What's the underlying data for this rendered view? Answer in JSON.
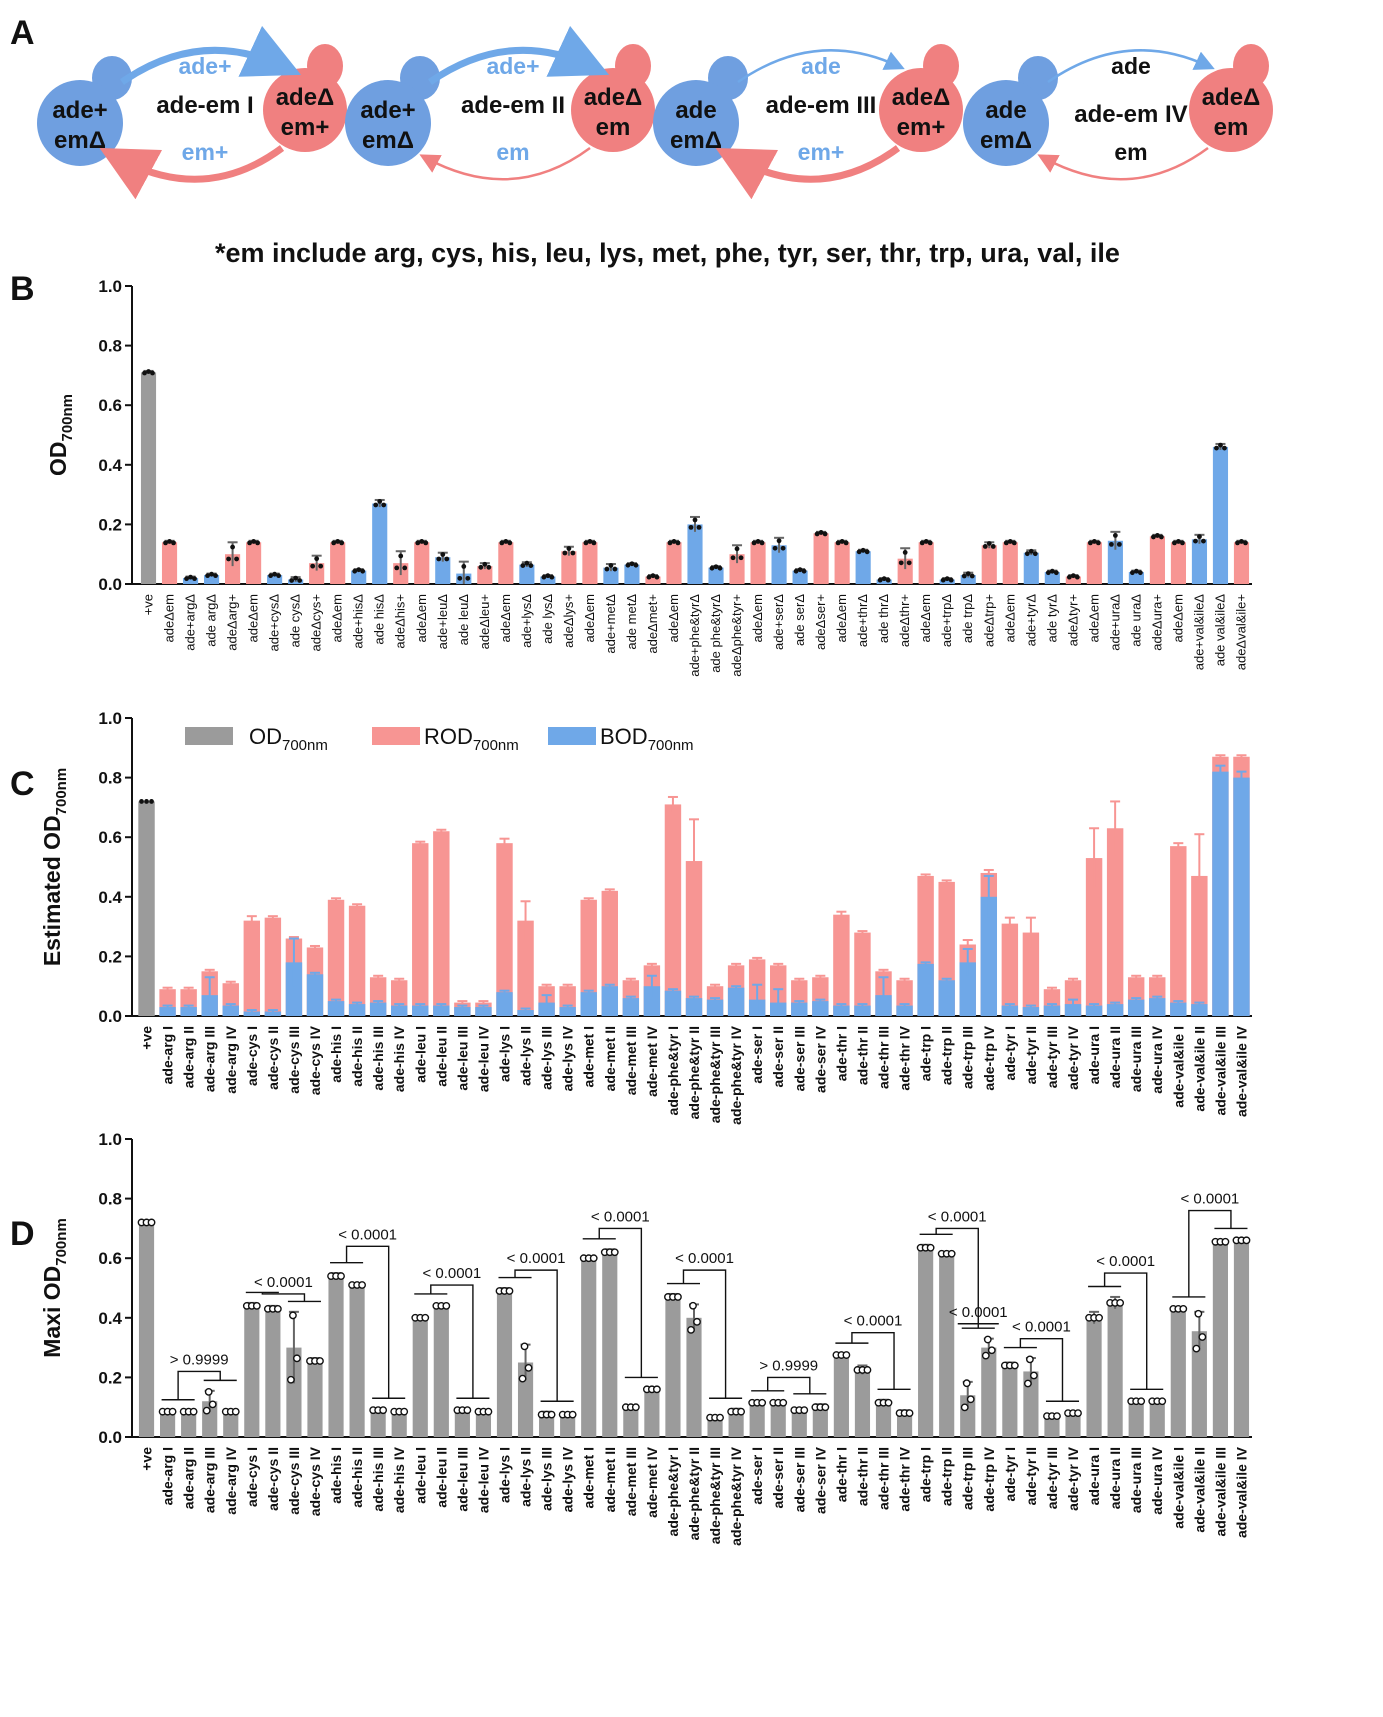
{
  "panels": {
    "A": "A",
    "B": "B",
    "C": "C",
    "D": "D"
  },
  "diagrams": [
    {
      "center": "ade-em I",
      "top": "ade+",
      "bottom": "em+",
      "left": [
        "ade+",
        "emΔ"
      ],
      "right": [
        "adeΔ",
        "em+"
      ],
      "top_thick": true,
      "bottom_thick": true
    },
    {
      "center": "ade-em II",
      "top": "ade+",
      "bottom": "em",
      "left": [
        "ade+",
        "emΔ"
      ],
      "right": [
        "adeΔ",
        "em"
      ],
      "top_thick": true,
      "bottom_thick": false
    },
    {
      "center": "ade-em III",
      "top": "ade",
      "bottom": "em+",
      "left": [
        "ade",
        "emΔ"
      ],
      "right": [
        "adeΔ",
        "em+"
      ],
      "top_thick": false,
      "bottom_thick": true
    },
    {
      "center": "ade-em IV",
      "top": "ade",
      "bottom": "em",
      "left": [
        "ade",
        "emΔ"
      ],
      "right": [
        "adeΔ",
        "em"
      ],
      "top_thick": false,
      "bottom_thick": false
    }
  ],
  "em_note": "*em include arg, cys, his, leu, lys, met, phe, tyr, ser, thr, trp, ura, val, ile",
  "colors": {
    "gray": "#9b9b9b",
    "red": "#f79593",
    "blue": "#6fa8e8",
    "blue_cell": "#6f9fe0",
    "red_cell": "#f08080",
    "text_blue": "#6fa8e8",
    "text_red": "#f08080"
  },
  "chart_data": [
    {
      "type": "bar",
      "panel": "B",
      "ylabel": "OD700nm",
      "ylim": [
        0,
        1.0
      ],
      "yticks": [
        "0.0",
        "0.2",
        "0.4",
        "0.6",
        "0.8",
        "1.0"
      ],
      "categories": [
        "+ve",
        "adeΔem",
        "ade+argΔ",
        "ade argΔ",
        "adeΔarg+",
        "adeΔem",
        "ade+cysΔ",
        "ade cysΔ",
        "adeΔcys+",
        "adeΔem",
        "ade+hisΔ",
        "ade hisΔ",
        "adeΔhis+",
        "adeΔem",
        "ade+leuΔ",
        "ade leuΔ",
        "adeΔleu+",
        "adeΔem",
        "ade+lysΔ",
        "ade lysΔ",
        "adeΔlys+",
        "adeΔem",
        "ade+metΔ",
        "ade metΔ",
        "adeΔmet+",
        "adeΔem",
        "ade+phe&tyrΔ",
        "ade phe&tyrΔ",
        "adeΔphe&tyr+",
        "adeΔem",
        "ade+serΔ",
        "ade serΔ",
        "adeΔser+",
        "adeΔem",
        "ade+thrΔ",
        "ade thrΔ",
        "adeΔthr+",
        "adeΔem",
        "ade+trpΔ",
        "ade trpΔ",
        "adeΔtrp+",
        "adeΔem",
        "ade+tyrΔ",
        "ade tyrΔ",
        "adeΔtyr+",
        "adeΔem",
        "ade+uraΔ",
        "ade uraΔ",
        "adeΔura+",
        "adeΔem",
        "ade+val&ileΔ",
        "ade val&ileΔ",
        "adeΔval&ile+"
      ],
      "values": [
        0.71,
        0.14,
        0.02,
        0.03,
        0.1,
        0.14,
        0.03,
        0.015,
        0.07,
        0.14,
        0.045,
        0.27,
        0.07,
        0.14,
        0.09,
        0.035,
        0.06,
        0.14,
        0.065,
        0.025,
        0.11,
        0.14,
        0.055,
        0.065,
        0.025,
        0.14,
        0.2,
        0.055,
        0.1,
        0.14,
        0.13,
        0.045,
        0.17,
        0.14,
        0.11,
        0.015,
        0.085,
        0.14,
        0.015,
        0.03,
        0.13,
        0.14,
        0.105,
        0.04,
        0.025,
        0.14,
        0.145,
        0.04,
        0.16,
        0.14,
        0.15,
        0.46,
        0.14
      ],
      "errors": [
        0.005,
        0.005,
        0.005,
        0.005,
        0.04,
        0.005,
        0.005,
        0.008,
        0.025,
        0.005,
        0.005,
        0.012,
        0.04,
        0.005,
        0.015,
        0.04,
        0.01,
        0.005,
        0.008,
        0.005,
        0.015,
        0.005,
        0.012,
        0.005,
        0.005,
        0.005,
        0.025,
        0.005,
        0.03,
        0.005,
        0.025,
        0.005,
        0.005,
        0.005,
        0.005,
        0.005,
        0.035,
        0.005,
        0.005,
        0.008,
        0.01,
        0.005,
        0.008,
        0.005,
        0.005,
        0.005,
        0.03,
        0.005,
        0.005,
        0.005,
        0.015,
        0.01,
        0.005
      ],
      "color_codes": [
        "g",
        "r",
        "b",
        "b",
        "r",
        "r",
        "b",
        "b",
        "r",
        "r",
        "b",
        "b",
        "r",
        "r",
        "b",
        "b",
        "r",
        "r",
        "b",
        "b",
        "r",
        "r",
        "b",
        "b",
        "r",
        "r",
        "b",
        "b",
        "r",
        "r",
        "b",
        "b",
        "r",
        "r",
        "b",
        "b",
        "r",
        "r",
        "b",
        "b",
        "r",
        "r",
        "b",
        "b",
        "r",
        "r",
        "b",
        "b",
        "r",
        "r",
        "b",
        "b",
        "r"
      ]
    },
    {
      "type": "bar",
      "panel": "C",
      "stacked": true,
      "ylabel": "Estimated OD700nm",
      "ylim": [
        0,
        1.0
      ],
      "yticks": [
        "0.0",
        "0.2",
        "0.4",
        "0.6",
        "0.8",
        "1.0"
      ],
      "legend": {
        "position": "top",
        "items": [
          {
            "label": "OD",
            "sub": "700nm",
            "color": "gray"
          },
          {
            "label": "ROD",
            "sub": "700nm",
            "color": "red"
          },
          {
            "label": "BOD",
            "sub": "700nm",
            "color": "blue"
          }
        ]
      },
      "categories": [
        "+ve",
        "ade-arg I",
        "ade-arg II",
        "ade-arg III",
        "ade-arg IV",
        "ade-cys I",
        "ade-cys II",
        "ade-cys III",
        "ade-cys IV",
        "ade-his I",
        "ade-his II",
        "ade-his III",
        "ade-his IV",
        "ade-leu I",
        "ade-leu II",
        "ade-leu III",
        "ade-leu IV",
        "ade-lys I",
        "ade-lys II",
        "ade-lys III",
        "ade-lys IV",
        "ade-met I",
        "ade-met II",
        "ade-met III",
        "ade-met IV",
        "ade-phe&tyr I",
        "ade-phe&tyr II",
        "ade-phe&tyr III",
        "ade-phe&tyr IV",
        "ade-ser I",
        "ade-ser II",
        "ade-ser III",
        "ade-ser IV",
        "ade-thr I",
        "ade-thr II",
        "ade-thr III",
        "ade-thr IV",
        "ade-trp I",
        "ade-trp II",
        "ade-trp III",
        "ade-trp IV",
        "ade-tyr I",
        "ade-tyr II",
        "ade-tyr III",
        "ade-tyr IV",
        "ade-ura I",
        "ade-ura II",
        "ade-ura III",
        "ade-ura IV",
        "ade-val&ile I",
        "ade-val&ile II",
        "ade-val&ile III",
        "ade-val&ile IV"
      ],
      "totals": [
        0.72,
        0.09,
        0.09,
        0.15,
        0.11,
        0.32,
        0.33,
        0.26,
        0.23,
        0.39,
        0.37,
        0.13,
        0.12,
        0.58,
        0.62,
        0.045,
        0.045,
        0.58,
        0.32,
        0.1,
        0.1,
        0.39,
        0.42,
        0.12,
        0.17,
        0.71,
        0.52,
        0.1,
        0.17,
        0.19,
        0.17,
        0.12,
        0.13,
        0.34,
        0.28,
        0.15,
        0.12,
        0.47,
        0.45,
        0.24,
        0.48,
        0.31,
        0.28,
        0.09,
        0.12,
        0.53,
        0.63,
        0.13,
        0.13,
        0.57,
        0.47,
        0.87,
        0.87
      ],
      "total_errors": [
        0.005,
        0.005,
        0.005,
        0.005,
        0.005,
        0.015,
        0.005,
        0.005,
        0.005,
        0.005,
        0.005,
        0.005,
        0.005,
        0.005,
        0.005,
        0.005,
        0.005,
        0.015,
        0.065,
        0.005,
        0.005,
        0.005,
        0.005,
        0.005,
        0.005,
        0.025,
        0.14,
        0.005,
        0.005,
        0.005,
        0.005,
        0.005,
        0.005,
        0.01,
        0.005,
        0.005,
        0.005,
        0.005,
        0.005,
        0.015,
        0.01,
        0.02,
        0.05,
        0.005,
        0.005,
        0.1,
        0.09,
        0.005,
        0.005,
        0.01,
        0.14,
        0.005,
        0.005
      ],
      "blue": [
        0.0,
        0.03,
        0.03,
        0.07,
        0.035,
        0.015,
        0.015,
        0.18,
        0.14,
        0.05,
        0.04,
        0.045,
        0.035,
        0.035,
        0.035,
        0.03,
        0.03,
        0.08,
        0.02,
        0.045,
        0.03,
        0.08,
        0.1,
        0.06,
        0.1,
        0.085,
        0.06,
        0.055,
        0.095,
        0.055,
        0.045,
        0.045,
        0.05,
        0.035,
        0.035,
        0.07,
        0.035,
        0.175,
        0.12,
        0.18,
        0.4,
        0.035,
        0.03,
        0.035,
        0.04,
        0.035,
        0.04,
        0.055,
        0.06,
        0.045,
        0.04,
        0.82,
        0.8
      ],
      "blue_errors": [
        0,
        0.005,
        0.005,
        0.06,
        0.005,
        0.005,
        0.005,
        0.08,
        0.005,
        0.005,
        0.005,
        0.005,
        0.005,
        0.005,
        0.005,
        0.005,
        0.005,
        0.005,
        0.005,
        0.025,
        0.005,
        0.005,
        0.005,
        0.005,
        0.035,
        0.005,
        0.005,
        0.005,
        0.005,
        0.05,
        0.045,
        0.005,
        0.005,
        0.005,
        0.005,
        0.06,
        0.005,
        0.005,
        0.005,
        0.045,
        0.07,
        0.005,
        0.005,
        0.005,
        0.015,
        0.005,
        0.005,
        0.005,
        0.005,
        0.005,
        0.005,
        0.02,
        0.02
      ]
    },
    {
      "type": "bar",
      "panel": "D",
      "ylabel": "Maxi OD700nm",
      "ylim": [
        0,
        1.0
      ],
      "yticks": [
        "0.0",
        "0.2",
        "0.4",
        "0.6",
        "0.8",
        "1.0"
      ],
      "categories": [
        "+ve",
        "ade-arg I",
        "ade-arg II",
        "ade-arg III",
        "ade-arg IV",
        "ade-cys I",
        "ade-cys II",
        "ade-cys III",
        "ade-cys IV",
        "ade-his I",
        "ade-his II",
        "ade-his III",
        "ade-his IV",
        "ade-leu I",
        "ade-leu II",
        "ade-leu III",
        "ade-leu IV",
        "ade-lys I",
        "ade-lys II",
        "ade-lys III",
        "ade-lys IV",
        "ade-met I",
        "ade-met II",
        "ade-met III",
        "ade-met IV",
        "ade-phe&tyr I",
        "ade-phe&tyr II",
        "ade-phe&tyr III",
        "ade-phe&tyr IV",
        "ade-ser I",
        "ade-ser II",
        "ade-ser III",
        "ade-ser IV",
        "ade-thr I",
        "ade-thr II",
        "ade-thr III",
        "ade-thr IV",
        "ade-trp I",
        "ade-trp II",
        "ade-trp III",
        "ade-trp IV",
        "ade-tyr I",
        "ade-tyr II",
        "ade-tyr III",
        "ade-tyr IV",
        "ade-ura I",
        "ade-ura II",
        "ade-ura III",
        "ade-ura IV",
        "ade-val&ile I",
        "ade-val&ile II",
        "ade-val&ile III",
        "ade-val&ile IV"
      ],
      "values": [
        0.72,
        0.085,
        0.085,
        0.12,
        0.085,
        0.44,
        0.43,
        0.3,
        0.255,
        0.54,
        0.51,
        0.09,
        0.085,
        0.4,
        0.44,
        0.09,
        0.085,
        0.49,
        0.25,
        0.075,
        0.075,
        0.6,
        0.62,
        0.1,
        0.16,
        0.47,
        0.4,
        0.065,
        0.085,
        0.115,
        0.115,
        0.09,
        0.1,
        0.275,
        0.225,
        0.115,
        0.08,
        0.635,
        0.615,
        0.14,
        0.3,
        0.24,
        0.22,
        0.07,
        0.08,
        0.4,
        0.45,
        0.12,
        0.12,
        0.43,
        0.355,
        0.655,
        0.66
      ],
      "errors": [
        0.005,
        0.005,
        0.005,
        0.035,
        0.005,
        0.01,
        0.01,
        0.12,
        0.01,
        0.01,
        0.005,
        0.005,
        0.005,
        0.005,
        0.005,
        0.005,
        0.005,
        0.01,
        0.06,
        0.01,
        0.005,
        0.005,
        0.01,
        0.005,
        0.005,
        0.01,
        0.045,
        0.005,
        0.01,
        0.005,
        0.005,
        0.005,
        0.01,
        0.005,
        0.015,
        0.01,
        0.01,
        0.01,
        0.005,
        0.045,
        0.03,
        0.01,
        0.045,
        0.005,
        0.005,
        0.02,
        0.02,
        0.005,
        0.005,
        0.005,
        0.065,
        0.005,
        0.005
      ],
      "comparisons": [
        {
          "label": "> 0.9999",
          "from": 1,
          "to": 4,
          "level": 0.22,
          "bars": [
            [
              1,
              2
            ],
            [
              3,
              4
            ]
          ]
        },
        {
          "label": "< 0.0001",
          "from": 5,
          "to": 8,
          "level": 0.48,
          "bars": [
            [
              5,
              6
            ],
            [
              7,
              8
            ]
          ]
        },
        {
          "label": "< 0.0001",
          "from": 9,
          "to": 12,
          "level": 0.64,
          "bars": [
            [
              9,
              10
            ],
            [
              11,
              12
            ]
          ]
        },
        {
          "label": "< 0.0001",
          "from": 13,
          "to": 16,
          "level": 0.51,
          "bars": [
            [
              13,
              14
            ],
            [
              15,
              16
            ]
          ]
        },
        {
          "label": "< 0.0001",
          "from": 17,
          "to": 20,
          "level": 0.56,
          "bars": [
            [
              17,
              18
            ],
            [
              19,
              20
            ]
          ]
        },
        {
          "label": "< 0.0001",
          "from": 21,
          "to": 24,
          "level": 0.7,
          "bars": [
            [
              21,
              22
            ],
            [
              23,
              24
            ]
          ]
        },
        {
          "label": "< 0.0001",
          "from": 25,
          "to": 28,
          "level": 0.56,
          "bars": [
            [
              25,
              26
            ],
            [
              27,
              28
            ]
          ]
        },
        {
          "label": "> 0.9999",
          "from": 29,
          "to": 32,
          "level": 0.2,
          "bars": [
            [
              29,
              30
            ],
            [
              31,
              32
            ]
          ]
        },
        {
          "label": "< 0.0001",
          "from": 33,
          "to": 36,
          "level": 0.35,
          "bars": [
            [
              33,
              34
            ],
            [
              35,
              36
            ]
          ]
        },
        {
          "label": "< 0.0001",
          "from": 37,
          "to": 39,
          "level": 0.7,
          "bars": [
            [
              37,
              38
            ],
            [
              39,
              40
            ]
          ]
        },
        {
          "label": "< 0.0001",
          "from": 39,
          "to": 40,
          "level": 0.38,
          "bars": []
        },
        {
          "label": "< 0.0001",
          "from": 41,
          "to": 44,
          "level": 0.33,
          "bars": [
            [
              41,
              42
            ],
            [
              43,
              44
            ]
          ]
        },
        {
          "label": "< 0.0001",
          "from": 45,
          "to": 48,
          "level": 0.55,
          "bars": [
            [
              45,
              46
            ],
            [
              47,
              48
            ]
          ]
        },
        {
          "label": "< 0.0001",
          "from": 49,
          "to": 52,
          "level": 0.76,
          "bars": [
            [
              49,
              50
            ],
            [
              51,
              52
            ]
          ]
        }
      ]
    }
  ]
}
